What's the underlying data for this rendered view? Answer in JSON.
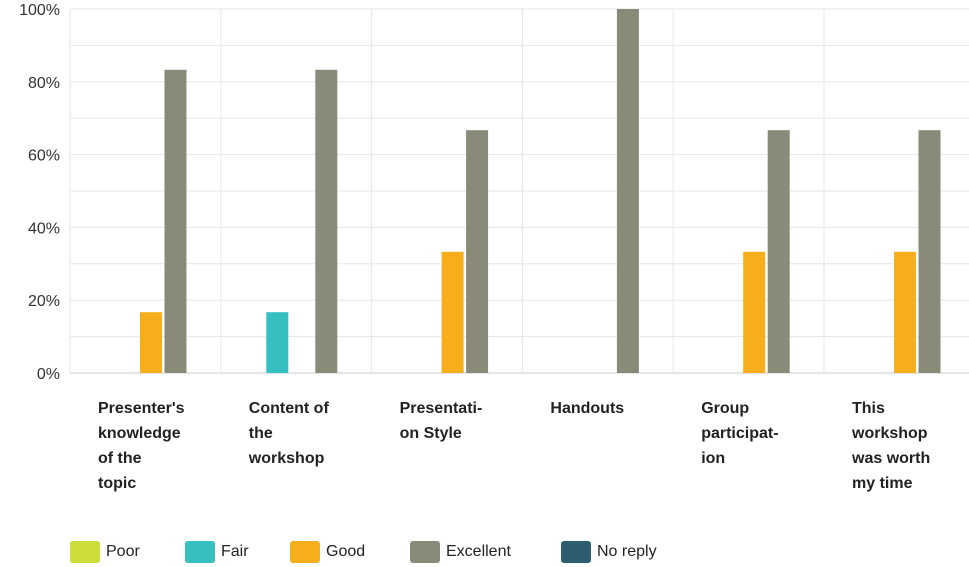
{
  "chart_data": {
    "type": "bar",
    "categories": [
      "Presenter's knowledge of the topic",
      "Content of the workshop",
      "Presentation Style",
      "Handouts",
      "Group participation",
      "This workshop was worth my time"
    ],
    "category_label_lines": [
      [
        "Presenter's",
        "knowledge",
        "of the",
        "topic"
      ],
      [
        "Content of",
        "the",
        "workshop"
      ],
      [
        "Presentati-",
        "on Style"
      ],
      [
        "Handouts"
      ],
      [
        "Group",
        "participat-",
        "ion"
      ],
      [
        "This",
        "workshop",
        "was worth",
        "my time"
      ]
    ],
    "series": [
      {
        "name": "Poor",
        "color": "#cddc39",
        "values": [
          0,
          0,
          0,
          0,
          0,
          0
        ]
      },
      {
        "name": "Fair",
        "color": "#35bfc0",
        "values": [
          0,
          16.7,
          0,
          0,
          0,
          0
        ]
      },
      {
        "name": "Good",
        "color": "#f6ae1d",
        "values": [
          16.7,
          0,
          33.3,
          0,
          33.3,
          33.3
        ]
      },
      {
        "name": "Excellent",
        "color": "#8a8a78",
        "values": [
          83.3,
          83.3,
          66.7,
          100,
          66.7,
          66.7
        ]
      },
      {
        "name": "No reply",
        "color": "#2d5e70",
        "values": [
          0,
          0,
          0,
          0,
          0,
          0
        ]
      }
    ],
    "ylim": [
      0,
      100
    ],
    "yticks": [
      "0%",
      "20%",
      "40%",
      "60%",
      "80%",
      "100%"
    ],
    "grid": true,
    "legend_position": "bottom-left",
    "title": "",
    "xlabel": "",
    "ylabel": ""
  }
}
